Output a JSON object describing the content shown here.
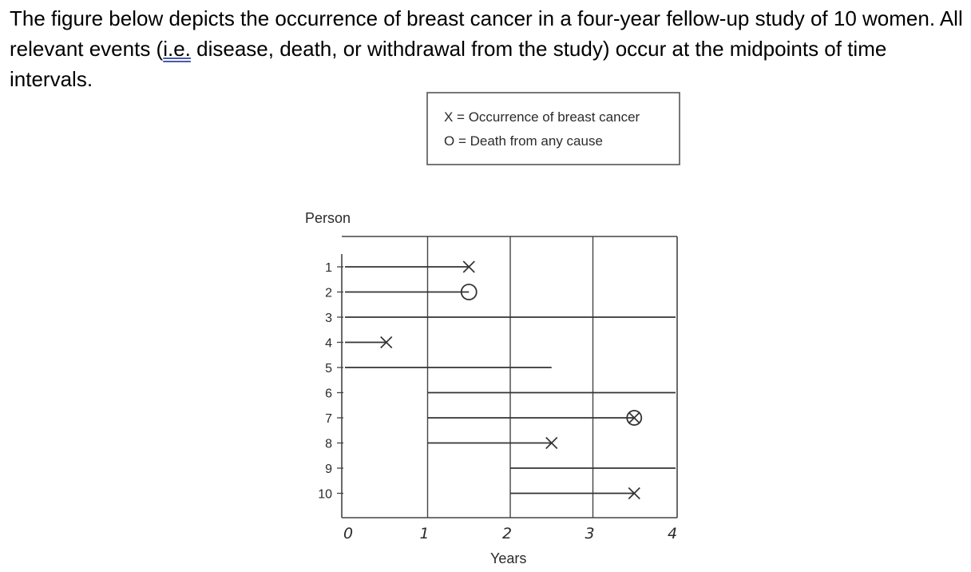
{
  "question": {
    "text_before": "The figure below depicts the occurrence of breast cancer in a four-year fellow-up study of 10 women. All relevant events (",
    "underlined": "i.e.",
    "text_after": " disease, death, or withdrawal from the study) occur at the midpoints of time intervals."
  },
  "figure": {
    "legend": {
      "line1": "X = Occurrence of breast cancer",
      "line2": "O = Death from any cause"
    },
    "y_axis_label": "Person",
    "x_axis_label": "Years",
    "persons": [
      "1",
      "2",
      "3",
      "4",
      "5",
      "6",
      "7",
      "8",
      "9",
      "10"
    ],
    "x_ticks": [
      "0",
      "1",
      "2",
      "3",
      "4"
    ],
    "grid": true,
    "follow_up": [
      {
        "person": 1,
        "start": 0,
        "end": 1.5,
        "event": "cancer"
      },
      {
        "person": 2,
        "start": 0,
        "end": 1.5,
        "event": "death"
      },
      {
        "person": 3,
        "start": 0,
        "end": 4.0,
        "event": "none"
      },
      {
        "person": 4,
        "start": 0,
        "end": 0.5,
        "event": "cancer"
      },
      {
        "person": 5,
        "start": 0,
        "end": 2.5,
        "event": "none"
      },
      {
        "person": 6,
        "start": 1,
        "end": 4.0,
        "event": "none"
      },
      {
        "person": 7,
        "start": 1,
        "end": 3.5,
        "event": "cancer_and_death"
      },
      {
        "person": 8,
        "start": 1,
        "end": 2.5,
        "event": "cancer"
      },
      {
        "person": 9,
        "start": 2,
        "end": 4.0,
        "event": "none"
      },
      {
        "person": 10,
        "start": 2,
        "end": 3.5,
        "event": "cancer"
      }
    ]
  }
}
